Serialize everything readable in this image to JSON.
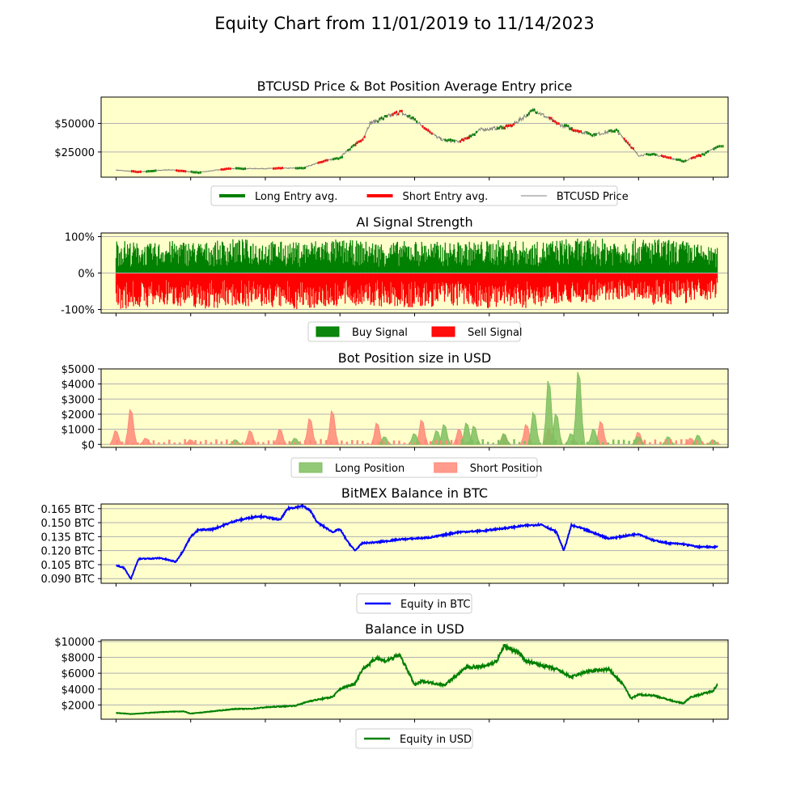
{
  "figure_title": "Equity Chart from 11/01/2019 to 11/14/2023",
  "colors": {
    "panel_bg": "#ffffcc",
    "grid": "#b0b0b0",
    "long": "#008000",
    "short": "#ff0000",
    "price": "#808080",
    "btc_equity": "#0000ff",
    "usd_equity": "#008000",
    "long_fill": "#7fbf5f",
    "short_fill": "#ff8a78"
  },
  "chart_data": [
    {
      "type": "line",
      "title": "BTCUSD Price & Bot Position Average Entry price",
      "yticks": [
        {
          "v": 25000,
          "label": "$25000"
        },
        {
          "v": 50000,
          "label": "$50000"
        }
      ],
      "ylim": [
        3000,
        73000
      ],
      "xlim": [
        -0.1,
        4.1
      ],
      "legend": [
        "Long Entry avg.",
        "Short Entry avg.",
        "BTCUSD Price"
      ],
      "grid": "horizontal",
      "series": [
        {
          "name": "BTCUSD Price",
          "x": [
            0.0,
            0.15,
            0.35,
            0.55,
            0.75,
            1.0,
            1.25,
            1.4,
            1.5,
            1.55,
            1.65,
            1.7,
            1.8,
            1.9,
            2.0,
            2.15,
            2.2,
            2.3,
            2.45,
            2.5,
            2.65,
            2.8,
            2.95,
            3.1,
            3.2,
            3.35,
            3.5,
            3.6,
            3.7,
            3.8,
            3.95,
            4.03
          ],
          "y": [
            9200,
            7500,
            9500,
            7000,
            10500,
            10500,
            11000,
            17500,
            19500,
            27000,
            36000,
            50000,
            55000,
            60000,
            53000,
            38000,
            35000,
            34000,
            45000,
            45000,
            48000,
            62000,
            50000,
            43000,
            40000,
            44000,
            22000,
            23000,
            20000,
            16800,
            24000,
            30000
          ]
        },
        {
          "name": "Long Entry avg.",
          "x": [
            0.2,
            0.5,
            0.8,
            1.2,
            1.45,
            1.55,
            1.75,
            1.95,
            2.2,
            2.35,
            2.55,
            2.75,
            3.0,
            3.15,
            3.3,
            3.55,
            3.75,
            3.9,
            4.0
          ],
          "y": [
            8200,
            7200,
            10200,
            11000,
            18000,
            25000,
            52000,
            58000,
            36000,
            33000,
            46000,
            60000,
            46000,
            41000,
            43000,
            22000,
            19000,
            25000,
            30000
          ]
        },
        {
          "name": "Short Entry avg.",
          "x": [
            0.1,
            0.4,
            0.7,
            1.05,
            1.35,
            1.6,
            1.85,
            2.05,
            2.3,
            2.6,
            2.9,
            3.05,
            3.4,
            3.65,
            3.85
          ],
          "y": [
            8800,
            9000,
            9800,
            10700,
            15000,
            28000,
            57000,
            50000,
            35000,
            47000,
            55000,
            44000,
            42000,
            21500,
            17000
          ]
        }
      ]
    },
    {
      "type": "area",
      "title": "AI Signal Strength",
      "yticks": [
        {
          "v": -100,
          "label": "-100%"
        },
        {
          "v": 0,
          "label": "0%"
        },
        {
          "v": 100,
          "label": "100%"
        }
      ],
      "ylim": [
        -110,
        110
      ],
      "xlim": [
        -0.1,
        4.1
      ],
      "legend": [
        "Buy Signal",
        "Sell Signal"
      ],
      "grid": "horizontal",
      "series": [
        {
          "name": "Buy Signal",
          "x": [
            0.0,
            0.2,
            0.4,
            0.6,
            0.8,
            1.0,
            1.2,
            1.4,
            1.6,
            1.8,
            2.0,
            2.2,
            2.4,
            2.6,
            2.8,
            3.0,
            3.2,
            3.4,
            3.6,
            3.8,
            4.0,
            4.03
          ],
          "y": [
            95,
            80,
            90,
            85,
            95,
            90,
            85,
            95,
            90,
            85,
            90,
            85,
            88,
            92,
            85,
            95,
            95,
            95,
            95,
            90,
            70,
            70
          ]
        },
        {
          "name": "Sell Signal",
          "x": [
            0.0,
            0.2,
            0.4,
            0.6,
            0.8,
            1.0,
            1.2,
            1.4,
            1.6,
            1.8,
            2.0,
            2.2,
            2.4,
            2.6,
            2.8,
            3.0,
            3.2,
            3.4,
            3.6,
            3.8,
            4.0,
            4.03
          ],
          "y": [
            -100,
            -95,
            -90,
            -100,
            -90,
            -95,
            -100,
            -95,
            -90,
            -95,
            -100,
            -90,
            -95,
            -100,
            -95,
            -80,
            -85,
            -70,
            -90,
            -85,
            -75,
            -60
          ]
        }
      ]
    },
    {
      "type": "area",
      "title": "Bot Position size in USD",
      "yticks": [
        {
          "v": 0,
          "label": "$0"
        },
        {
          "v": 1000,
          "label": "$1000"
        },
        {
          "v": 2000,
          "label": "$2000"
        },
        {
          "v": 3000,
          "label": "$3000"
        },
        {
          "v": 4000,
          "label": "$4000"
        },
        {
          "v": 5000,
          "label": "$5000"
        }
      ],
      "ylim": [
        -200,
        5000
      ],
      "xlim": [
        -0.1,
        4.1
      ],
      "legend": [
        "Long Position",
        "Short Position"
      ],
      "grid": "horizontal",
      "series": [
        {
          "name": "Long Position",
          "x": [
            0.8,
            1.2,
            1.8,
            2.0,
            2.15,
            2.2,
            2.35,
            2.4,
            2.6,
            2.8,
            2.9,
            2.95,
            3.05,
            3.1,
            3.2,
            3.5,
            3.7,
            3.9,
            4.0
          ],
          "y": [
            300,
            400,
            500,
            700,
            900,
            1300,
            1400,
            1200,
            700,
            2100,
            4200,
            2000,
            700,
            4800,
            1000,
            500,
            500,
            600,
            300
          ]
        },
        {
          "name": "Short Position",
          "x": [
            0.0,
            0.1,
            0.2,
            0.5,
            0.9,
            1.1,
            1.3,
            1.45,
            1.75,
            2.05,
            2.3,
            2.6,
            2.75,
            2.9,
            3.25,
            3.5,
            3.85
          ],
          "y": [
            900,
            2300,
            400,
            300,
            900,
            1000,
            1700,
            2200,
            1400,
            1600,
            1000,
            700,
            1300,
            1100,
            1500,
            800,
            400
          ]
        }
      ]
    },
    {
      "type": "line",
      "title": "BitMEX Balance in BTC",
      "yticks": [
        {
          "v": 0.09,
          "label": "0.090 BTC"
        },
        {
          "v": 0.105,
          "label": "0.105 BTC"
        },
        {
          "v": 0.12,
          "label": "0.120 BTC"
        },
        {
          "v": 0.135,
          "label": "0.135 BTC"
        },
        {
          "v": 0.15,
          "label": "0.150 BTC"
        },
        {
          "v": 0.165,
          "label": "0.165 BTC"
        }
      ],
      "ylim": [
        0.085,
        0.17
      ],
      "xlim": [
        -0.1,
        4.1
      ],
      "legend": [
        "Equity in BTC"
      ],
      "grid": "horizontal",
      "series": [
        {
          "name": "Equity in BTC",
          "x": [
            0.0,
            0.05,
            0.1,
            0.15,
            0.3,
            0.4,
            0.45,
            0.5,
            0.55,
            0.65,
            0.8,
            0.95,
            1.0,
            1.1,
            1.15,
            1.25,
            1.3,
            1.35,
            1.45,
            1.5,
            1.55,
            1.6,
            1.65,
            1.75,
            1.9,
            2.1,
            2.3,
            2.45,
            2.6,
            2.75,
            2.85,
            2.95,
            3.0,
            3.05,
            3.1,
            3.3,
            3.5,
            3.6,
            3.7,
            3.8,
            3.9,
            4.03
          ],
          "y": [
            0.104,
            0.102,
            0.09,
            0.111,
            0.112,
            0.108,
            0.12,
            0.135,
            0.142,
            0.143,
            0.152,
            0.157,
            0.156,
            0.153,
            0.165,
            0.168,
            0.163,
            0.15,
            0.14,
            0.143,
            0.13,
            0.12,
            0.128,
            0.129,
            0.132,
            0.134,
            0.14,
            0.141,
            0.144,
            0.147,
            0.148,
            0.14,
            0.12,
            0.147,
            0.145,
            0.133,
            0.138,
            0.131,
            0.128,
            0.127,
            0.124,
            0.124
          ]
        }
      ]
    },
    {
      "type": "line",
      "title": "Balance in USD",
      "yticks": [
        {
          "v": 2000,
          "label": "$2000"
        },
        {
          "v": 4000,
          "label": "$4000"
        },
        {
          "v": 6000,
          "label": "$6000"
        },
        {
          "v": 8000,
          "label": "$8000"
        },
        {
          "v": 10000,
          "label": "$10000"
        }
      ],
      "ylim": [
        200,
        10200
      ],
      "xlim": [
        -0.1,
        4.1
      ],
      "legend": [
        "Equity in USD"
      ],
      "grid": "horizontal",
      "series": [
        {
          "name": "Equity in USD",
          "x": [
            0.0,
            0.1,
            0.3,
            0.45,
            0.5,
            0.55,
            0.7,
            0.8,
            0.9,
            1.0,
            1.2,
            1.3,
            1.45,
            1.5,
            1.6,
            1.65,
            1.7,
            1.75,
            1.8,
            1.9,
            1.95,
            2.0,
            2.05,
            2.2,
            2.3,
            2.35,
            2.45,
            2.55,
            2.6,
            2.7,
            2.75,
            2.85,
            2.95,
            3.05,
            3.15,
            3.3,
            3.4,
            3.45,
            3.5,
            3.6,
            3.75,
            3.8,
            3.85,
            3.95,
            4.0,
            4.03
          ],
          "y": [
            1000,
            850,
            1100,
            1200,
            900,
            1000,
            1300,
            1500,
            1500,
            1700,
            1900,
            2500,
            3000,
            4000,
            4700,
            6500,
            7200,
            8000,
            7500,
            8300,
            6500,
            4500,
            5000,
            4500,
            6000,
            6800,
            6800,
            7500,
            9500,
            8500,
            7500,
            7000,
            6500,
            5500,
            6200,
            6500,
            4500,
            2800,
            3300,
            3200,
            2400,
            2200,
            3000,
            3500,
            3800,
            4600
          ]
        }
      ]
    }
  ]
}
